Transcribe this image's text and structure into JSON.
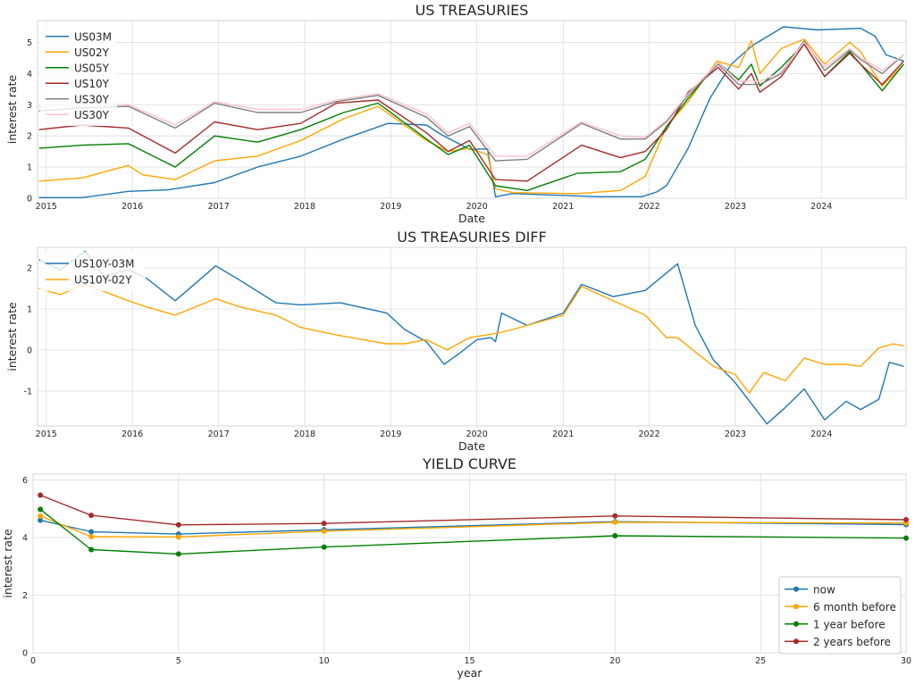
{
  "chart_data": [
    {
      "type": "line",
      "title": "US TREASURIES",
      "xlabel": "Date",
      "ylabel": "interest rate",
      "xlim": [
        "2014-11-25",
        "2024-12-25"
      ],
      "ylim": [
        0,
        5.7
      ],
      "x_ticks": [
        "2015",
        "2016",
        "2017",
        "2018",
        "2019",
        "2020",
        "2021",
        "2022",
        "2023",
        "2024"
      ],
      "y_ticks": [
        0,
        1,
        2,
        3,
        4,
        5
      ],
      "grid": true,
      "legend": "top-left",
      "series": [
        {
          "name": "US03M",
          "color": "#1f77b4",
          "x": [
            "2014-12-01",
            "2015-06-01",
            "2015-12-15",
            "2016-06-01",
            "2016-12-15",
            "2017-06-15",
            "2017-12-15",
            "2018-06-15",
            "2018-12-20",
            "2019-06-01",
            "2019-08-01",
            "2019-12-01",
            "2020-02-15",
            "2020-03-20",
            "2020-06-01",
            "2021-06-01",
            "2021-12-01",
            "2022-02-01",
            "2022-03-15",
            "2022-06-15",
            "2022-09-15",
            "2022-12-15",
            "2023-03-15",
            "2023-07-25",
            "2023-12-15",
            "2024-06-15",
            "2024-08-15",
            "2024-10-01",
            "2024-12-15"
          ],
          "y": [
            0.02,
            0.02,
            0.22,
            0.27,
            0.5,
            1.0,
            1.35,
            1.9,
            2.4,
            2.35,
            2.05,
            1.57,
            1.58,
            0.05,
            0.15,
            0.05,
            0.05,
            0.2,
            0.4,
            1.6,
            3.2,
            4.3,
            4.9,
            5.5,
            5.4,
            5.45,
            5.2,
            4.6,
            4.4
          ]
        },
        {
          "name": "US02Y",
          "color": "#ffa500",
          "x": [
            "2014-12-01",
            "2015-06-01",
            "2015-12-15",
            "2016-02-15",
            "2016-07-01",
            "2016-12-15",
            "2017-06-15",
            "2017-12-15",
            "2018-06-15",
            "2018-11-08",
            "2019-06-01",
            "2019-09-01",
            "2019-12-01",
            "2020-02-15",
            "2020-03-20",
            "2020-06-01",
            "2021-03-01",
            "2021-09-01",
            "2021-12-15",
            "2022-03-15",
            "2022-06-15",
            "2022-10-15",
            "2023-01-15",
            "2023-03-10",
            "2023-04-15",
            "2023-07-15",
            "2023-10-20",
            "2024-01-15",
            "2024-04-30",
            "2024-06-15",
            "2024-09-15",
            "2024-12-15"
          ],
          "y": [
            0.55,
            0.65,
            1.05,
            0.75,
            0.6,
            1.2,
            1.35,
            1.85,
            2.55,
            2.95,
            1.85,
            1.5,
            1.6,
            1.4,
            0.3,
            0.18,
            0.15,
            0.25,
            0.7,
            2.3,
            3.1,
            4.4,
            4.2,
            5.05,
            4.0,
            4.8,
            5.1,
            4.3,
            5.0,
            4.7,
            3.6,
            4.3
          ]
        },
        {
          "name": "US05Y",
          "color": "#008000",
          "x": [
            "2014-12-01",
            "2015-06-01",
            "2015-12-15",
            "2016-07-01",
            "2016-12-15",
            "2017-06-15",
            "2017-12-15",
            "2018-06-15",
            "2018-11-08",
            "2019-06-01",
            "2019-09-01",
            "2019-12-01",
            "2020-03-20",
            "2020-08-01",
            "2021-03-01",
            "2021-09-01",
            "2021-12-15",
            "2022-03-15",
            "2022-06-15",
            "2022-10-20",
            "2023-01-15",
            "2023-03-10",
            "2023-04-15",
            "2023-07-15",
            "2023-10-20",
            "2024-01-15",
            "2024-04-30",
            "2024-06-15",
            "2024-09-15",
            "2024-12-15"
          ],
          "y": [
            1.6,
            1.7,
            1.75,
            1.0,
            2.0,
            1.8,
            2.2,
            2.75,
            3.05,
            1.9,
            1.4,
            1.7,
            0.4,
            0.25,
            0.8,
            0.85,
            1.25,
            2.3,
            3.2,
            4.35,
            3.8,
            4.3,
            3.6,
            4.2,
            4.95,
            3.9,
            4.7,
            4.3,
            3.45,
            4.3
          ]
        },
        {
          "name": "US10Y",
          "color": "#a52a2a",
          "x": [
            "2014-12-01",
            "2015-06-01",
            "2015-12-15",
            "2016-07-01",
            "2016-12-15",
            "2017-06-15",
            "2017-12-15",
            "2018-05-15",
            "2018-11-08",
            "2019-06-01",
            "2019-09-01",
            "2019-12-01",
            "2020-03-20",
            "2020-08-01",
            "2021-03-20",
            "2021-09-01",
            "2021-12-15",
            "2022-03-15",
            "2022-06-15",
            "2022-10-20",
            "2023-01-15",
            "2023-03-10",
            "2023-04-15",
            "2023-07-15",
            "2023-10-20",
            "2024-01-15",
            "2024-04-30",
            "2024-06-15",
            "2024-09-15",
            "2024-12-15"
          ],
          "y": [
            2.2,
            2.35,
            2.25,
            1.45,
            2.45,
            2.2,
            2.4,
            3.05,
            3.15,
            2.1,
            1.5,
            1.85,
            0.6,
            0.55,
            1.7,
            1.3,
            1.5,
            2.2,
            3.4,
            4.2,
            3.5,
            4.0,
            3.4,
            3.9,
            4.95,
            3.9,
            4.65,
            4.3,
            3.65,
            4.4
          ]
        },
        {
          "name": "US30Y",
          "color": "#808080",
          "x": [
            "2014-12-01",
            "2015-06-01",
            "2015-12-15",
            "2016-07-01",
            "2016-12-15",
            "2017-06-15",
            "2017-12-15",
            "2018-05-15",
            "2018-11-08",
            "2019-06-01",
            "2019-09-01",
            "2019-12-01",
            "2020-03-20",
            "2020-08-01",
            "2021-03-20",
            "2021-09-01",
            "2021-12-15",
            "2022-03-15",
            "2022-06-15",
            "2022-10-20",
            "2023-01-15",
            "2023-04-15",
            "2023-07-15",
            "2023-10-20",
            "2024-01-15",
            "2024-04-30",
            "2024-06-15",
            "2024-09-15",
            "2024-12-15"
          ],
          "y": [
            2.8,
            2.9,
            2.95,
            2.25,
            3.05,
            2.75,
            2.75,
            3.1,
            3.3,
            2.6,
            2.0,
            2.3,
            1.2,
            1.25,
            2.4,
            1.9,
            1.9,
            2.45,
            3.3,
            4.3,
            3.65,
            3.65,
            4.0,
            5.05,
            4.1,
            4.75,
            4.45,
            4.0,
            4.6
          ]
        },
        {
          "name": "US30Y",
          "color": "#ffc0cb",
          "x": [
            "2014-12-01",
            "2015-06-01",
            "2015-12-15",
            "2016-07-01",
            "2016-12-15",
            "2017-06-15",
            "2017-12-15",
            "2018-05-15",
            "2018-11-08",
            "2019-06-01",
            "2019-09-01",
            "2019-12-01",
            "2020-03-20",
            "2020-08-01",
            "2021-03-20",
            "2021-09-01",
            "2021-12-15",
            "2022-03-15",
            "2022-06-15",
            "2022-10-20",
            "2023-01-15",
            "2023-04-15",
            "2023-07-15",
            "2023-10-20",
            "2024-01-15",
            "2024-04-30",
            "2024-06-15",
            "2024-09-15",
            "2024-12-15"
          ],
          "y": [
            2.95,
            3.05,
            3.0,
            2.35,
            3.1,
            2.85,
            2.85,
            3.15,
            3.35,
            2.7,
            2.1,
            2.4,
            1.35,
            1.35,
            2.45,
            2.0,
            1.95,
            2.5,
            3.35,
            4.35,
            3.75,
            3.75,
            4.05,
            5.0,
            4.2,
            4.8,
            4.5,
            4.1,
            4.6
          ]
        }
      ]
    },
    {
      "type": "line",
      "title": "US TREASURIES DIFF",
      "xlabel": "Date",
      "ylabel": "interest rate",
      "xlim": [
        "2014-11-25",
        "2024-12-25"
      ],
      "ylim": [
        -1.85,
        2.5
      ],
      "x_ticks": [
        "2015",
        "2016",
        "2017",
        "2018",
        "2019",
        "2020",
        "2021",
        "2022",
        "2023",
        "2024"
      ],
      "y_ticks": [
        -1,
        0,
        1,
        2
      ],
      "grid": true,
      "legend": "top-left",
      "series": [
        {
          "name": "US10Y-03M",
          "color": "#1f77b4",
          "x": [
            "2014-12-01",
            "2015-03-01",
            "2015-06-15",
            "2015-09-01",
            "2015-12-15",
            "2016-03-01",
            "2016-07-01",
            "2016-12-20",
            "2017-04-01",
            "2017-09-01",
            "2017-12-15",
            "2018-06-01",
            "2018-12-15",
            "2019-03-01",
            "2019-06-01",
            "2019-08-15",
            "2019-10-15",
            "2020-01-01",
            "2020-03-01",
            "2020-03-20",
            "2020-04-15",
            "2020-08-01",
            "2021-01-01",
            "2021-03-20",
            "2021-08-01",
            "2021-12-15",
            "2022-05-01",
            "2022-07-15",
            "2022-10-01",
            "2023-01-01",
            "2023-05-15",
            "2023-08-01",
            "2023-10-20",
            "2024-01-15",
            "2024-04-15",
            "2024-06-15",
            "2024-09-01",
            "2024-10-15",
            "2024-12-15"
          ],
          "y": [
            2.2,
            1.95,
            2.4,
            1.8,
            1.95,
            1.75,
            1.2,
            2.05,
            1.7,
            1.15,
            1.1,
            1.15,
            0.9,
            0.5,
            0.2,
            -0.35,
            -0.1,
            0.25,
            0.3,
            0.2,
            0.9,
            0.6,
            0.9,
            1.6,
            1.3,
            1.45,
            2.1,
            0.6,
            -0.25,
            -0.8,
            -1.8,
            -1.4,
            -0.95,
            -1.7,
            -1.25,
            -1.45,
            -1.2,
            -0.3,
            -0.4
          ]
        },
        {
          "name": "US10Y-02Y",
          "color": "#ffa500",
          "x": [
            "2014-12-01",
            "2015-03-01",
            "2015-06-15",
            "2015-12-15",
            "2016-03-01",
            "2016-07-01",
            "2016-12-20",
            "2017-04-01",
            "2017-09-01",
            "2017-12-15",
            "2018-06-01",
            "2018-12-15",
            "2019-03-01",
            "2019-06-01",
            "2019-08-28",
            "2019-12-01",
            "2020-03-20",
            "2020-06-01",
            "2021-01-01",
            "2021-03-20",
            "2021-08-01",
            "2021-12-15",
            "2022-03-15",
            "2022-05-01",
            "2022-07-15",
            "2022-10-01",
            "2023-01-01",
            "2023-03-01",
            "2023-05-01",
            "2023-08-01",
            "2023-10-20",
            "2024-01-15",
            "2024-04-15",
            "2024-06-15",
            "2024-09-01",
            "2024-11-01",
            "2024-12-15"
          ],
          "y": [
            1.5,
            1.35,
            1.6,
            1.2,
            1.05,
            0.85,
            1.25,
            1.05,
            0.85,
            0.55,
            0.35,
            0.15,
            0.15,
            0.25,
            0.0,
            0.3,
            0.4,
            0.5,
            0.85,
            1.55,
            1.2,
            0.85,
            0.3,
            0.3,
            -0.05,
            -0.4,
            -0.6,
            -1.05,
            -0.55,
            -0.75,
            -0.2,
            -0.35,
            -0.35,
            -0.4,
            0.05,
            0.15,
            0.1
          ]
        }
      ]
    },
    {
      "type": "line",
      "title": "YIELD CURVE",
      "xlabel": "year",
      "ylabel": "interest rate",
      "xlim": [
        0,
        30
      ],
      "ylim": [
        0,
        6.2
      ],
      "x_ticks": [
        0,
        5,
        10,
        15,
        20,
        25,
        30
      ],
      "y_ticks": [
        0,
        2,
        4,
        6
      ],
      "grid": true,
      "legend": "bottom-right",
      "x": [
        0.25,
        2,
        5,
        10,
        20,
        30
      ],
      "series": [
        {
          "name": "now",
          "color": "#1f77b4",
          "values": [
            4.6,
            4.2,
            4.12,
            4.27,
            4.55,
            4.45
          ]
        },
        {
          "name": "6 month before",
          "color": "#ffa500",
          "values": [
            4.75,
            4.03,
            4.02,
            4.22,
            4.53,
            4.5
          ]
        },
        {
          "name": "1 year before",
          "color": "#008000",
          "values": [
            4.98,
            3.58,
            3.43,
            3.67,
            4.06,
            3.98
          ]
        },
        {
          "name": "2 years before",
          "color": "#a52a2a",
          "values": [
            5.47,
            4.77,
            4.44,
            4.49,
            4.75,
            4.62
          ]
        }
      ]
    }
  ]
}
